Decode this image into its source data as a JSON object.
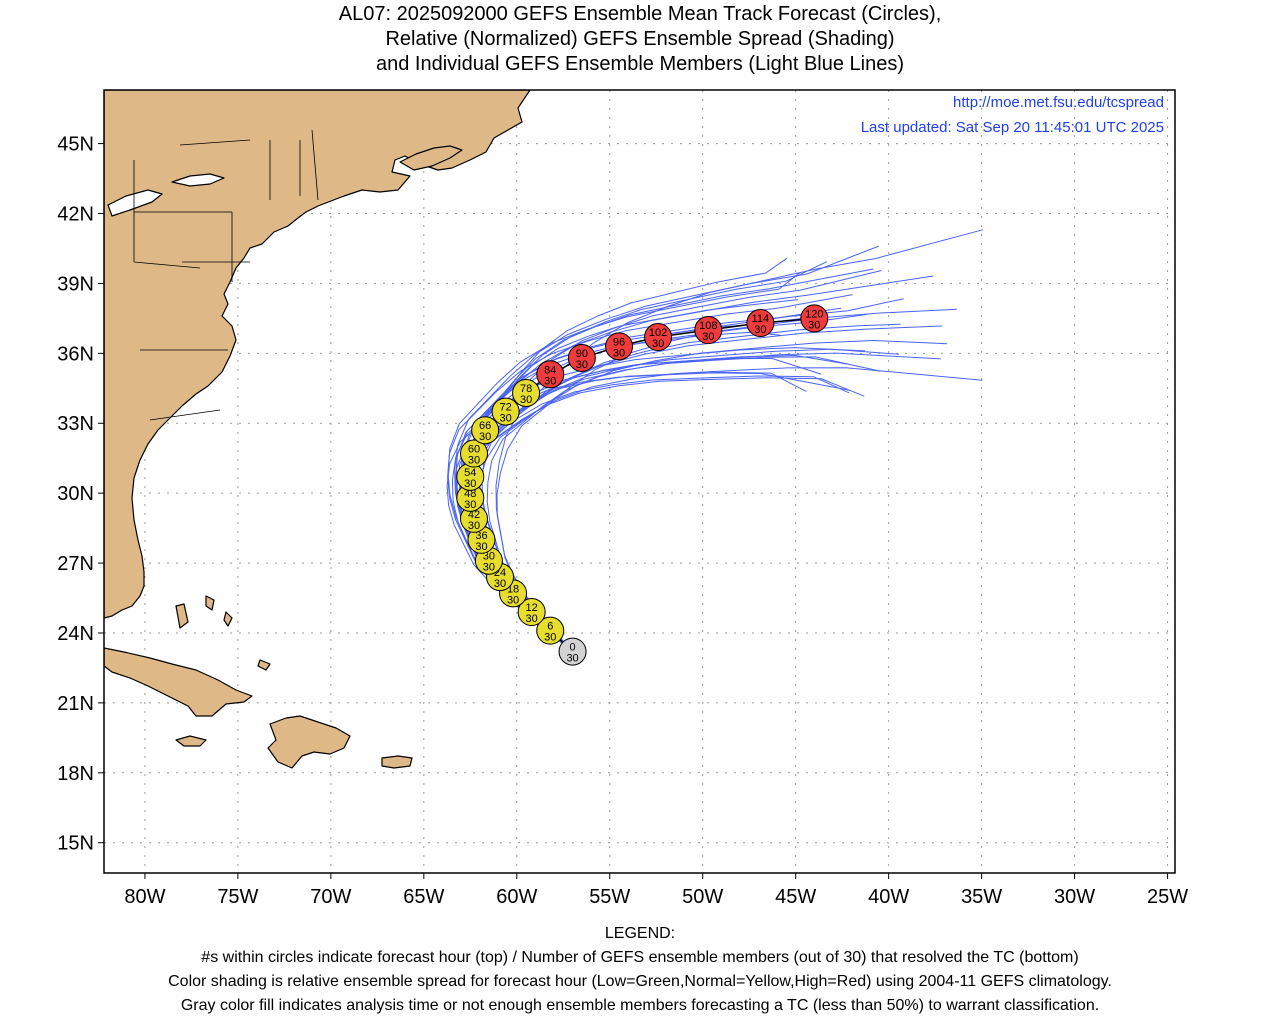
{
  "title": {
    "line1": "AL07: 2025092000 GEFS Ensemble Mean Track Forecast (Circles),",
    "line2": "Relative (Normalized) GEFS Ensemble Spread (Shading)",
    "line3": "and Individual GEFS Ensemble Members (Light Blue Lines)"
  },
  "credits": {
    "url": "http://moe.met.fsu.edu/tcspread",
    "updated": "Last updated: Sat Sep 20 11:45:01 UTC 2025"
  },
  "axes": {
    "lon_range": [
      -82.2,
      -24.6
    ],
    "lat_range": [
      13.7,
      47.3
    ],
    "lon_ticks": [
      {
        "value": -80,
        "label": "80W"
      },
      {
        "value": -75,
        "label": "75W"
      },
      {
        "value": -70,
        "label": "70W"
      },
      {
        "value": -65,
        "label": "65W"
      },
      {
        "value": -60,
        "label": "60W"
      },
      {
        "value": -55,
        "label": "55W"
      },
      {
        "value": -50,
        "label": "50W"
      },
      {
        "value": -45,
        "label": "45W"
      },
      {
        "value": -40,
        "label": "40W"
      },
      {
        "value": -35,
        "label": "35W"
      },
      {
        "value": -30,
        "label": "30W"
      },
      {
        "value": -25,
        "label": "25W"
      }
    ],
    "lat_ticks": [
      {
        "value": 15,
        "label": "15N"
      },
      {
        "value": 18,
        "label": "18N"
      },
      {
        "value": 21,
        "label": "21N"
      },
      {
        "value": 24,
        "label": "24N"
      },
      {
        "value": 27,
        "label": "27N"
      },
      {
        "value": 30,
        "label": "30N"
      },
      {
        "value": 33,
        "label": "33N"
      },
      {
        "value": 36,
        "label": "36N"
      },
      {
        "value": 39,
        "label": "39N"
      },
      {
        "value": 42,
        "label": "42N"
      },
      {
        "value": 45,
        "label": "45N"
      }
    ],
    "grid": "dotted"
  },
  "colors": {
    "land": "#deb887",
    "member_track": "#4a64f5",
    "spread_gray": "#d3d3d3",
    "spread_yellow": "#e6dd2e",
    "spread_red": "#ef3b3b",
    "credit_text": "#1f3ff0"
  },
  "mean_track": [
    {
      "hour": "0",
      "members": "30",
      "lon": -57.0,
      "lat": 23.2,
      "spread": "gray"
    },
    {
      "hour": "6",
      "members": "30",
      "lon": -58.2,
      "lat": 24.1,
      "spread": "yellow"
    },
    {
      "hour": "12",
      "members": "30",
      "lon": -59.2,
      "lat": 24.9,
      "spread": "yellow"
    },
    {
      "hour": "18",
      "members": "30",
      "lon": -60.2,
      "lat": 25.7,
      "spread": "yellow"
    },
    {
      "hour": "24",
      "members": "30",
      "lon": -60.9,
      "lat": 26.4,
      "spread": "yellow"
    },
    {
      "hour": "30",
      "members": "30",
      "lon": -61.5,
      "lat": 27.1,
      "spread": "yellow"
    },
    {
      "hour": "36",
      "members": "30",
      "lon": -61.9,
      "lat": 28.0,
      "spread": "yellow"
    },
    {
      "hour": "42",
      "members": "30",
      "lon": -62.3,
      "lat": 28.9,
      "spread": "yellow"
    },
    {
      "hour": "48",
      "members": "30",
      "lon": -62.5,
      "lat": 29.8,
      "spread": "yellow"
    },
    {
      "hour": "54",
      "members": "30",
      "lon": -62.5,
      "lat": 30.7,
      "spread": "yellow"
    },
    {
      "hour": "60",
      "members": "30",
      "lon": -62.3,
      "lat": 31.7,
      "spread": "yellow"
    },
    {
      "hour": "66",
      "members": "30",
      "lon": -61.7,
      "lat": 32.7,
      "spread": "yellow"
    },
    {
      "hour": "72",
      "members": "30",
      "lon": -60.6,
      "lat": 33.5,
      "spread": "yellow"
    },
    {
      "hour": "78",
      "members": "30",
      "lon": -59.5,
      "lat": 34.3,
      "spread": "yellow"
    },
    {
      "hour": "84",
      "members": "30",
      "lon": -58.2,
      "lat": 35.1,
      "spread": "red"
    },
    {
      "hour": "90",
      "members": "30",
      "lon": -56.5,
      "lat": 35.8,
      "spread": "red"
    },
    {
      "hour": "96",
      "members": "30",
      "lon": -54.5,
      "lat": 36.3,
      "spread": "red"
    },
    {
      "hour": "102",
      "members": "30",
      "lon": -52.4,
      "lat": 36.7,
      "spread": "red"
    },
    {
      "hour": "108",
      "members": "30",
      "lon": -49.7,
      "lat": 37.0,
      "spread": "red"
    },
    {
      "hour": "114",
      "members": "30",
      "lon": -46.9,
      "lat": 37.3,
      "spread": "red"
    },
    {
      "hour": "120",
      "members": "30",
      "lon": -44.0,
      "lat": 37.5,
      "spread": "red"
    }
  ],
  "legend": {
    "heading": "LEGEND:",
    "line1": "#s within circles indicate forecast hour (top) / Number of GEFS ensemble members (out of 30) that resolved the TC (bottom)",
    "line2": "Color shading is relative ensemble spread for forecast hour (Low=Green,Normal=Yellow,High=Red) using 2004-11 GEFS climatology.",
    "line3": "Gray color fill indicates analysis time or not enough ensemble members forecasting a TC (less than 50%) to warrant classification."
  }
}
